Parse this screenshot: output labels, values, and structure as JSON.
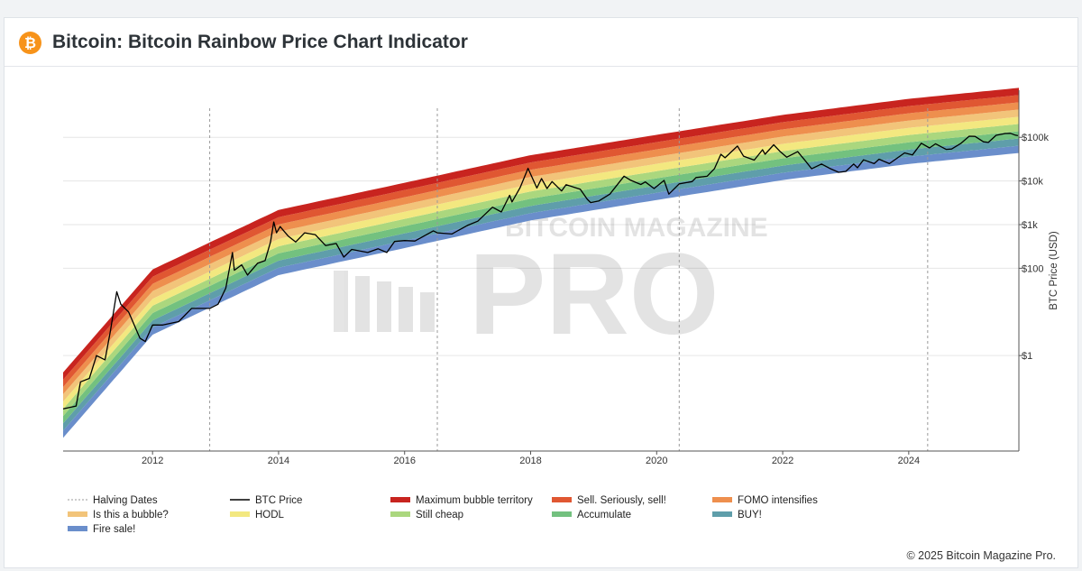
{
  "header": {
    "icon": "bitcoin-icon",
    "title": "Bitcoin: Bitcoin Rainbow Price Chart Indicator"
  },
  "footer": {
    "copyright": "© 2025 Bitcoin Magazine Pro."
  },
  "watermark": {
    "top_text": "BITCOIN MAGAZINE",
    "main_text": "PRO"
  },
  "colors": {
    "bands": [
      "#6a8ecb",
      "#5f9eaa",
      "#73c17f",
      "#abd77e",
      "#f3e880",
      "#f2c47a",
      "#ee8f4e",
      "#e05732",
      "#c8241f"
    ],
    "price_line": "#000000",
    "brand": "#f7931a"
  },
  "chart_data": {
    "type": "line",
    "x_scale": "date",
    "y_scale": "log",
    "xlim": [
      "2010-08-01",
      "2025-10-01"
    ],
    "ylim": [
      0.0065,
      1200000
    ],
    "x_ticks": [
      "2012",
      "2014",
      "2016",
      "2018",
      "2020",
      "2022",
      "2024"
    ],
    "y_ticks": [
      {
        "value": 1,
        "label": "$1"
      },
      {
        "value": 100,
        "label": "$100"
      },
      {
        "value": 1000,
        "label": "$1k"
      },
      {
        "value": 10000,
        "label": "$10k"
      },
      {
        "value": 100000,
        "label": "$100k"
      }
    ],
    "ylabel": "BTC Price (USD)",
    "grid": "horizontal",
    "halving_dates": [
      "2012-11-28",
      "2016-07-09",
      "2020-05-11",
      "2024-04-20"
    ],
    "rainbow_bands": {
      "band_names": [
        "Fire sale!",
        "BUY!",
        "Accumulate",
        "Still cheap",
        "HODL",
        "Is this a bubble?",
        "FOMO intensifies",
        "Sell. Seriously, sell!",
        "Maximum bubble territory"
      ],
      "band_edges": [
        {
          "date": "2010-08-01",
          "values": [
            0.013,
            0.019,
            0.028,
            0.041,
            0.06,
            0.088,
            0.13,
            0.19,
            0.28,
            0.41
          ]
        },
        {
          "date": "2012-01-01",
          "values": [
            3,
            4.4,
            6.4,
            9.4,
            13.8,
            20,
            30,
            44,
            64,
            94
          ]
        },
        {
          "date": "2014-01-01",
          "values": [
            70,
            103,
            150,
            220,
            320,
            470,
            690,
            1010,
            1480,
            2170
          ]
        },
        {
          "date": "2016-01-01",
          "values": [
            290,
            430,
            630,
            920,
            1350,
            1970,
            2890,
            4230,
            6200,
            9080
          ]
        },
        {
          "date": "2018-01-01",
          "values": [
            1250,
            1830,
            2680,
            3930,
            5760,
            8440,
            12400,
            18100,
            26500,
            38900
          ]
        },
        {
          "date": "2020-01-01",
          "values": [
            3660,
            5360,
            7850,
            11500,
            16800,
            24700,
            36100,
            52900,
            77500,
            114000
          ]
        },
        {
          "date": "2022-01-01",
          "values": [
            10500,
            15400,
            22500,
            33000,
            48300,
            70800,
            104000,
            152000,
            222000,
            326000
          ]
        },
        {
          "date": "2024-01-01",
          "values": [
            24500,
            35900,
            52500,
            76900,
            113000,
            165000,
            242000,
            355000,
            519000,
            761000
          ]
        },
        {
          "date": "2025-10-01",
          "values": [
            43800,
            64200,
            94000,
            138000,
            202000,
            295000,
            433000,
            634000,
            929000,
            1360000
          ]
        }
      ]
    },
    "series": [
      {
        "name": "BTC Price",
        "points": [
          [
            "2010-08-01",
            0.06
          ],
          [
            "2010-10-15",
            0.07
          ],
          [
            "2010-11-10",
            0.25
          ],
          [
            "2010-12-31",
            0.3
          ],
          [
            "2011-02-10",
            1.0
          ],
          [
            "2011-04-01",
            0.8
          ],
          [
            "2011-05-01",
            3.5
          ],
          [
            "2011-06-08",
            29
          ],
          [
            "2011-07-01",
            15
          ],
          [
            "2011-08-15",
            10
          ],
          [
            "2011-10-20",
            2.5
          ],
          [
            "2011-11-20",
            2.1
          ],
          [
            "2012-01-01",
            5
          ],
          [
            "2012-03-01",
            5
          ],
          [
            "2012-06-01",
            6
          ],
          [
            "2012-08-15",
            12
          ],
          [
            "2012-11-28",
            12
          ],
          [
            "2013-01-15",
            15
          ],
          [
            "2013-03-01",
            35
          ],
          [
            "2013-04-09",
            230
          ],
          [
            "2013-04-20",
            90
          ],
          [
            "2013-06-01",
            120
          ],
          [
            "2013-07-05",
            70
          ],
          [
            "2013-09-01",
            130
          ],
          [
            "2013-10-15",
            150
          ],
          [
            "2013-11-15",
            400
          ],
          [
            "2013-12-04",
            1150
          ],
          [
            "2013-12-20",
            650
          ],
          [
            "2014-01-10",
            900
          ],
          [
            "2014-02-25",
            550
          ],
          [
            "2014-04-10",
            400
          ],
          [
            "2014-06-01",
            650
          ],
          [
            "2014-08-01",
            590
          ],
          [
            "2014-10-01",
            330
          ],
          [
            "2014-12-01",
            370
          ],
          [
            "2015-01-14",
            180
          ],
          [
            "2015-03-01",
            270
          ],
          [
            "2015-06-01",
            230
          ],
          [
            "2015-08-01",
            280
          ],
          [
            "2015-09-20",
            230
          ],
          [
            "2015-11-04",
            410
          ],
          [
            "2016-01-01",
            430
          ],
          [
            "2016-03-01",
            420
          ],
          [
            "2016-06-16",
            720
          ],
          [
            "2016-07-09",
            650
          ],
          [
            "2016-10-01",
            610
          ],
          [
            "2016-12-31",
            960
          ],
          [
            "2017-03-01",
            1200
          ],
          [
            "2017-05-25",
            2500
          ],
          [
            "2017-07-15",
            1950
          ],
          [
            "2017-09-01",
            4700
          ],
          [
            "2017-09-15",
            3300
          ],
          [
            "2017-11-01",
            7000
          ],
          [
            "2017-12-17",
            19500
          ],
          [
            "2018-02-06",
            6900
          ],
          [
            "2018-03-05",
            11400
          ],
          [
            "2018-04-06",
            6700
          ],
          [
            "2018-05-05",
            9700
          ],
          [
            "2018-06-29",
            5900
          ],
          [
            "2018-07-25",
            8200
          ],
          [
            "2018-10-15",
            6500
          ],
          [
            "2018-11-25",
            3800
          ],
          [
            "2018-12-15",
            3200
          ],
          [
            "2019-02-01",
            3500
          ],
          [
            "2019-04-05",
            5000
          ],
          [
            "2019-06-26",
            12900
          ],
          [
            "2019-08-01",
            10500
          ],
          [
            "2019-10-01",
            8300
          ],
          [
            "2019-10-27",
            9500
          ],
          [
            "2019-12-17",
            6700
          ],
          [
            "2020-02-13",
            10300
          ],
          [
            "2020-03-12",
            5000
          ],
          [
            "2020-05-11",
            8600
          ],
          [
            "2020-07-25",
            9700
          ],
          [
            "2020-08-17",
            12000
          ],
          [
            "2020-10-20",
            12800
          ],
          [
            "2020-12-01",
            19000
          ],
          [
            "2021-01-08",
            41000
          ],
          [
            "2021-02-01",
            34000
          ],
          [
            "2021-04-14",
            63000
          ],
          [
            "2021-05-19",
            37000
          ],
          [
            "2021-07-20",
            30000
          ],
          [
            "2021-09-06",
            52000
          ],
          [
            "2021-09-21",
            41000
          ],
          [
            "2021-11-10",
            67500
          ],
          [
            "2021-12-15",
            48000
          ],
          [
            "2022-01-24",
            35000
          ],
          [
            "2022-03-29",
            47000
          ],
          [
            "2022-05-12",
            29000
          ],
          [
            "2022-06-18",
            19000
          ],
          [
            "2022-08-14",
            24500
          ],
          [
            "2022-09-30",
            19500
          ],
          [
            "2022-11-21",
            15800
          ],
          [
            "2023-01-01",
            16600
          ],
          [
            "2023-02-16",
            24500
          ],
          [
            "2023-03-10",
            20000
          ],
          [
            "2023-04-14",
            30500
          ],
          [
            "2023-06-15",
            25000
          ],
          [
            "2023-07-13",
            31500
          ],
          [
            "2023-09-11",
            25000
          ],
          [
            "2023-12-08",
            44000
          ],
          [
            "2024-01-23",
            39500
          ],
          [
            "2024-03-14",
            73000
          ],
          [
            "2024-05-01",
            57000
          ],
          [
            "2024-06-05",
            71000
          ],
          [
            "2024-08-05",
            53000
          ],
          [
            "2024-09-06",
            54000
          ],
          [
            "2024-10-29",
            72000
          ],
          [
            "2024-12-17",
            106000
          ],
          [
            "2025-01-20",
            105000
          ],
          [
            "2025-03-10",
            79000
          ],
          [
            "2025-04-07",
            76500
          ],
          [
            "2025-05-22",
            111000
          ],
          [
            "2025-07-14",
            122000
          ],
          [
            "2025-08-14",
            123500
          ],
          [
            "2025-09-10",
            112000
          ],
          [
            "2025-09-25",
            109000
          ]
        ]
      }
    ],
    "legend": {
      "placement": "bottom",
      "items": [
        {
          "label": "Halving Dates",
          "kind": "dashed",
          "color": "#999999"
        },
        {
          "label": "BTC Price",
          "kind": "line",
          "color": "#000000"
        },
        {
          "label": "Maximum bubble territory",
          "kind": "band",
          "color": "#c8241f"
        },
        {
          "label": "Sell. Seriously, sell!",
          "kind": "band",
          "color": "#e05732"
        },
        {
          "label": "FOMO intensifies",
          "kind": "band",
          "color": "#ee8f4e"
        },
        {
          "label": "Is this a bubble?",
          "kind": "band",
          "color": "#f2c47a"
        },
        {
          "label": "HODL",
          "kind": "band",
          "color": "#f3e880"
        },
        {
          "label": "Still cheap",
          "kind": "band",
          "color": "#abd77e"
        },
        {
          "label": "Accumulate",
          "kind": "band",
          "color": "#73c17f"
        },
        {
          "label": "BUY!",
          "kind": "band",
          "color": "#5f9eaa"
        },
        {
          "label": "Fire sale!",
          "kind": "band",
          "color": "#6a8ecb"
        }
      ]
    }
  }
}
